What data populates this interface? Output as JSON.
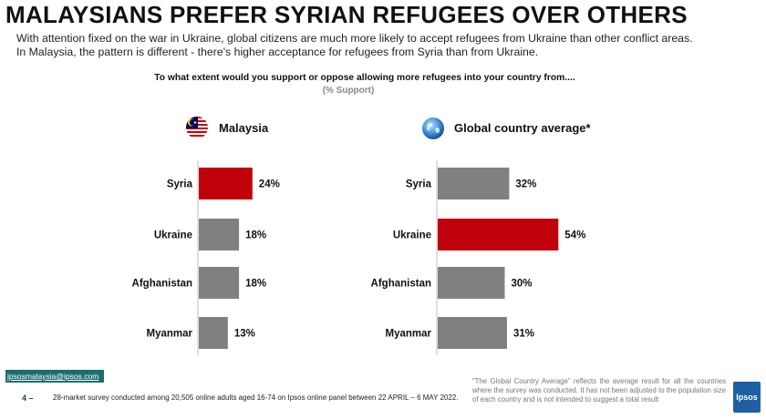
{
  "header": {
    "title": "MALAYSIANS PREFER SYRIAN REFUGEES OVER OTHERS",
    "intro_line1": "With attention fixed on the war in Ukraine, global citizens are much more likely to accept refugees from Ukraine than other conflict areas.",
    "intro_line2": "In Malaysia, the pattern is different - there's higher acceptance for refugees from Syria than from Ukraine.",
    "question": "To what extent would you support or oppose allowing more refugees into your country from....",
    "unit_note": "(% Support)"
  },
  "colors": {
    "highlight": "#c0000b",
    "neutral": "#808080"
  },
  "icons": {
    "malaysia": "malaysia-flag-icon",
    "global": "globe-icon"
  },
  "chart_data": [
    {
      "type": "bar",
      "orientation": "horizontal",
      "title": "Malaysia",
      "categories": [
        "Syria",
        "Ukraine",
        "Afghanistan",
        "Myanmar"
      ],
      "values": [
        24,
        18,
        18,
        13
      ],
      "labels": [
        "24%",
        "18%",
        "18%",
        "13%"
      ],
      "highlight_index": 0,
      "unit": "%",
      "xlim": [
        0,
        60
      ]
    },
    {
      "type": "bar",
      "orientation": "horizontal",
      "title": "Global country average*",
      "categories": [
        "Syria",
        "Ukraine",
        "Afghanistan",
        "Myanmar"
      ],
      "values": [
        32,
        54,
        30,
        31
      ],
      "labels": [
        "32%",
        "54%",
        "30%",
        "31%"
      ],
      "highlight_index": 1,
      "unit": "%",
      "xlim": [
        0,
        60
      ]
    }
  ],
  "footer": {
    "email": "ipsosmalaysia@ipsos.com",
    "page_number": "4 –",
    "footnote": "28-market survey conducted among 20,505 online adults aged 16-74  on Ipsos online panel between 22 APRIL – 6 MAY 2022.",
    "global_note": "“The Global Country Average” reflects the average result for all the countries where the survey was conducted. It has not been adjusted to the population size of each country and is not intended to suggest a total result",
    "logo_text": "Ipsos"
  }
}
